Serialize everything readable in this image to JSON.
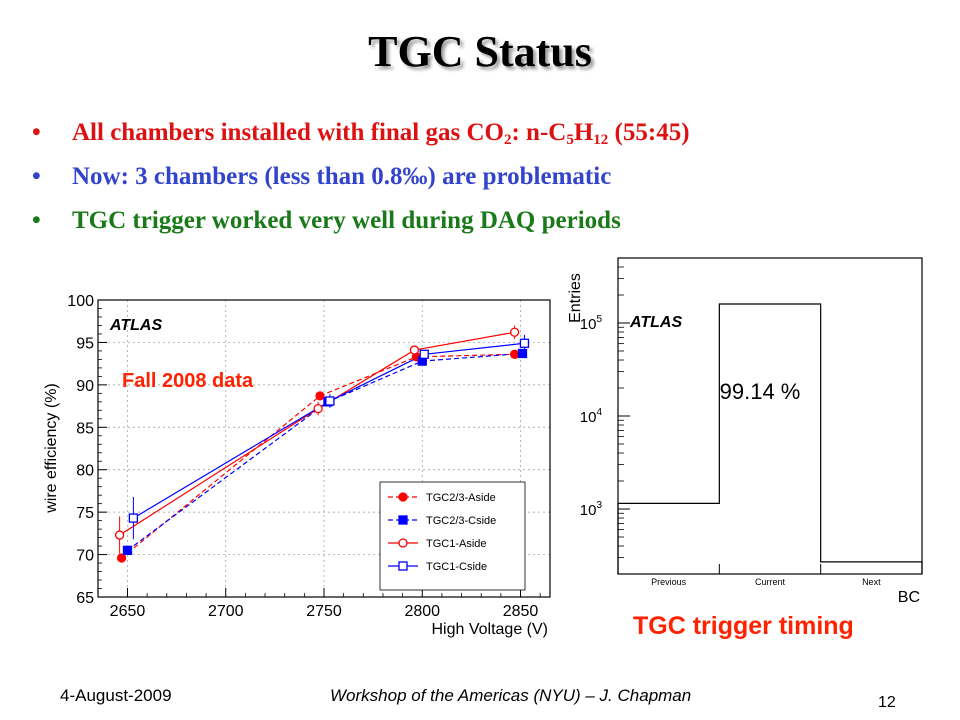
{
  "slide": {
    "title": "TGC Status",
    "bullets": [
      {
        "parts": [
          "All chambers installed with final gas CO",
          "2",
          ": n-C",
          "5",
          "H",
          "12",
          " (55:45)"
        ],
        "color": "#dd1111"
      },
      {
        "text": "Now: 3 chambers (less than 0.8‰) are problematic",
        "color": "#3344cc"
      },
      {
        "text": "TGC trigger worked very well during DAQ periods",
        "color": "#1a7a1a"
      }
    ],
    "bullet_char": "•",
    "overlay_left": "Fall 2008 data",
    "overlay_right": "TGC trigger timing",
    "footer_date": "4-August-2009",
    "footer_center": "Workshop of the Americas (NYU) – J. Chapman",
    "page_number": "12"
  },
  "chart_data": [
    {
      "type": "line",
      "title": "",
      "watermark": "ATLAS",
      "xlabel": "High Voltage (V)",
      "ylabel": "wire efficiency (%)",
      "xlim": [
        2635,
        2865
      ],
      "ylim": [
        65,
        100
      ],
      "xticks": [
        2650,
        2700,
        2750,
        2800,
        2850
      ],
      "yticks": [
        65,
        70,
        75,
        80,
        85,
        90,
        95,
        100
      ],
      "grid": true,
      "legend_position": "bottom-right",
      "series": [
        {
          "name": "TGC2/3-Aside",
          "color": "#ff0000",
          "marker": "filled-circle",
          "dash": "dashed",
          "x": [
            2647,
            2748,
            2797,
            2847
          ],
          "y": [
            69.6,
            88.7,
            93.3,
            93.6
          ],
          "err": [
            0,
            0,
            0,
            0
          ]
        },
        {
          "name": "TGC2/3-Cside",
          "color": "#0000ff",
          "marker": "filled-square",
          "dash": "dashed",
          "x": [
            2650,
            2752,
            2800,
            2851
          ],
          "y": [
            70.5,
            88.0,
            92.8,
            93.7
          ],
          "err": [
            0,
            0,
            0,
            0
          ]
        },
        {
          "name": "TGC1-Aside",
          "color": "#ff0000",
          "marker": "open-circle",
          "dash": "solid",
          "x": [
            2646,
            2747,
            2796,
            2847
          ],
          "y": [
            72.3,
            87.2,
            94.1,
            96.2
          ],
          "err": [
            2.2,
            0.8,
            0.4,
            0.8
          ]
        },
        {
          "name": "TGC1-Cside",
          "color": "#0000ff",
          "marker": "open-square",
          "dash": "solid",
          "x": [
            2653,
            2753,
            2801,
            2852
          ],
          "y": [
            74.3,
            88.1,
            93.6,
            94.9
          ],
          "err": [
            2.5,
            0.8,
            0.5,
            1.0
          ]
        }
      ]
    },
    {
      "type": "histogram",
      "title": "",
      "watermark": "ATLAS",
      "annotation": "99.14 %",
      "xlabel": "BC",
      "ylabel": "Entries",
      "log_y": true,
      "ylim": [
        200,
        500000
      ],
      "yticks": [
        {
          "value": 1000,
          "base": "10",
          "exp": "3"
        },
        {
          "value": 10000,
          "base": "10",
          "exp": "4"
        },
        {
          "value": 100000,
          "base": "10",
          "exp": "5"
        }
      ],
      "categories": [
        "Previous",
        "Current",
        "Next"
      ],
      "values": [
        1150,
        160000,
        270
      ],
      "grid": false
    }
  ]
}
